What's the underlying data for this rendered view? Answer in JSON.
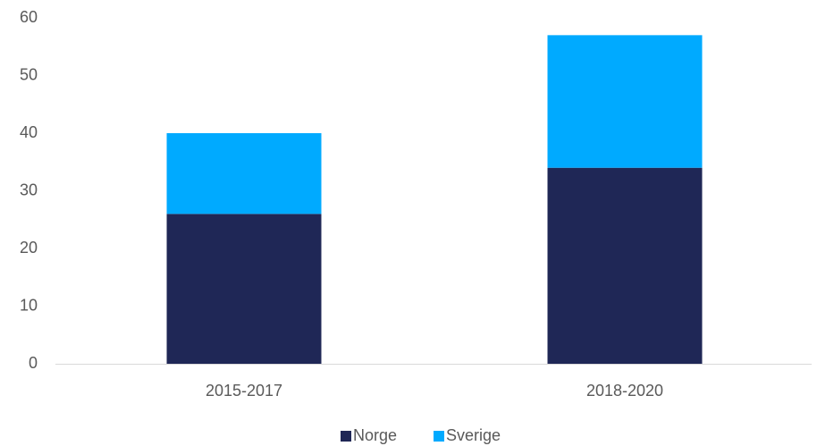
{
  "chart_data": {
    "type": "stacked_bar",
    "categories": [
      "2015-2017",
      "2018-2020"
    ],
    "series": [
      {
        "name": "Norge",
        "color": "#1f2756",
        "values": [
          26,
          34
        ]
      },
      {
        "name": "Sverige",
        "color": "#00aaff",
        "values": [
          14,
          23
        ]
      }
    ],
    "ylim": [
      0,
      60
    ],
    "yticks": [
      0,
      10,
      20,
      30,
      40,
      50,
      60
    ],
    "grid": false,
    "legend": "bottom"
  }
}
